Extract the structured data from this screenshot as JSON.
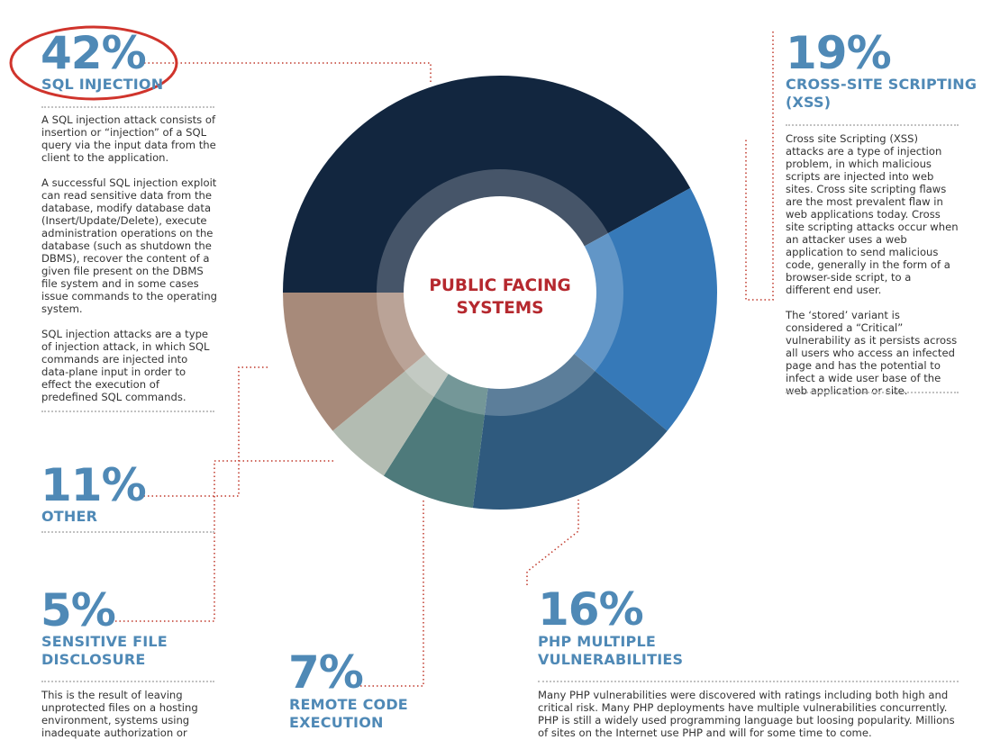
{
  "chart_data": {
    "type": "pie",
    "title": "PUBLIC FACING SYSTEMS",
    "slices": [
      {
        "label": "SQL INJECTION",
        "value": 42,
        "pct_text": "42%",
        "color": "#12263f"
      },
      {
        "label": "CROSS-SITE SCRIPTING (XSS)",
        "value": 19,
        "pct_text": "19%",
        "color": "#3679b8"
      },
      {
        "label": "PHP MULTIPLE VULNERABILITIES",
        "value": 16,
        "pct_text": "16%",
        "color": "#2f5a7e"
      },
      {
        "label": "REMOTE CODE EXECUTION",
        "value": 7,
        "pct_text": "7%",
        "color": "#4e7a7b"
      },
      {
        "label": "SENSITIVE FILE DISCLOSURE",
        "value": 5,
        "pct_text": "5%",
        "color": "#b3bcb2"
      },
      {
        "label": "OTHER",
        "value": 11,
        "pct_text": "11%",
        "color": "#a78a7a"
      }
    ]
  },
  "colors": {
    "accent_blue": "#4f89b6",
    "highlight_red": "#d0342c",
    "leader_red": "#c0392b"
  },
  "annotations": {
    "sql": {
      "pct": "42%",
      "label": "SQL INJECTION",
      "paragraphs": [
        "A SQL injection attack consists of insertion or “injection” of a SQL query via the input data from the client to the application.",
        "A successful SQL injection exploit can read sensitive data from the database, modify database data (Insert/Update/Delete), execute administration operations on the database (such as shutdown the DBMS), recover the content of a given file present on the DBMS file system and in some cases issue commands to the operating system.",
        "SQL injection attacks are a type of injection attack, in which SQL commands are injected into data-plane input in order to effect the execution of predefined SQL commands."
      ]
    },
    "xss": {
      "pct": "19%",
      "label_line1": "CROSS-SITE SCRIPTING",
      "label_line2": "(XSS)",
      "paragraphs": [
        "Cross site Scripting (XSS) attacks are a type of injection problem, in which malicious scripts are injected into web sites. Cross site scripting flaws are the most prevalent flaw in web applications today. Cross site scripting attacks occur when an attacker uses a web application to send malicious code, generally in the form of a browser-side script, to a different end user.",
        "The ‘stored’ variant is considered a “Critical” vulnerability as it persists across all users who access an infected page and has the potential to infect a wide user base of the web application or site."
      ]
    },
    "other": {
      "pct": "11%",
      "label": "OTHER"
    },
    "sensitive": {
      "pct": "5%",
      "label_line1": "SENSITIVE FILE",
      "label_line2": "DISCLOSURE",
      "body": "This is the result of leaving unprotected files on a hosting environment, systems using inadequate authorization or"
    },
    "rce": {
      "pct": "7%",
      "label_line1": "REMOTE CODE",
      "label_line2": "EXECUTION"
    },
    "php": {
      "pct": "16%",
      "label_line1": "PHP MULTIPLE",
      "label_line2": "VULNERABILITIES",
      "body": "Many PHP vulnerabilities were discovered with ratings including both high and critical risk. Many PHP deployments have multiple vulnerabilities concurrently. PHP is still a widely used programming language but loosing popularity. Millions of sites on the Internet use PHP and will for some time to come."
    }
  }
}
